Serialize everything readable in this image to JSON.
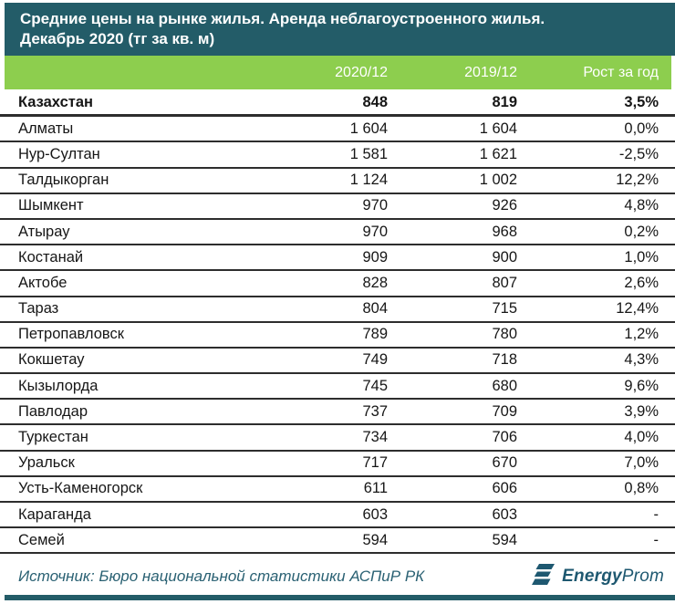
{
  "header": {
    "title_line1": "Средние цены на рынке жилья. Аренда неблагоустроенного жилья.",
    "title_line2": "Декабрь 2020 (тг за кв. м)"
  },
  "chart_data": {
    "type": "table",
    "title": "Средние цены на рынке жилья. Аренда неблагоустроенного жилья. Декабрь 2020 (тг за кв. м)",
    "columns": [
      "",
      "2020/12",
      "2019/12",
      "Рост за год"
    ],
    "rows": [
      {
        "name": "Казахстан",
        "v2020": "848",
        "v2019": "819",
        "growth": "3,5%",
        "bold": true
      },
      {
        "name": "Алматы",
        "v2020": "1 604",
        "v2019": "1 604",
        "growth": "0,0%",
        "bold": false
      },
      {
        "name": "Нур-Султан",
        "v2020": "1 581",
        "v2019": "1 621",
        "growth": "-2,5%",
        "bold": false
      },
      {
        "name": "Талдыкорган",
        "v2020": "1 124",
        "v2019": "1 002",
        "growth": "12,2%",
        "bold": false
      },
      {
        "name": "Шымкент",
        "v2020": "970",
        "v2019": "926",
        "growth": "4,8%",
        "bold": false
      },
      {
        "name": "Атырау",
        "v2020": "970",
        "v2019": "968",
        "growth": "0,2%",
        "bold": false
      },
      {
        "name": "Костанай",
        "v2020": "909",
        "v2019": "900",
        "growth": "1,0%",
        "bold": false
      },
      {
        "name": "Актобе",
        "v2020": "828",
        "v2019": "807",
        "growth": "2,6%",
        "bold": false
      },
      {
        "name": "Тараз",
        "v2020": "804",
        "v2019": "715",
        "growth": "12,4%",
        "bold": false
      },
      {
        "name": "Петропавловск",
        "v2020": "789",
        "v2019": "780",
        "growth": "1,2%",
        "bold": false
      },
      {
        "name": "Кокшетау",
        "v2020": "749",
        "v2019": "718",
        "growth": "4,3%",
        "bold": false
      },
      {
        "name": "Кызылорда",
        "v2020": "745",
        "v2019": "680",
        "growth": "9,6%",
        "bold": false
      },
      {
        "name": "Павлодар",
        "v2020": "737",
        "v2019": "709",
        "growth": "3,9%",
        "bold": false
      },
      {
        "name": "Туркестан",
        "v2020": "734",
        "v2019": "706",
        "growth": "4,0%",
        "bold": false
      },
      {
        "name": "Уральск",
        "v2020": "717",
        "v2019": "670",
        "growth": "7,0%",
        "bold": false
      },
      {
        "name": "Усть-Каменогорск",
        "v2020": "611",
        "v2019": "606",
        "growth": "0,8%",
        "bold": false
      },
      {
        "name": "Караганда",
        "v2020": "603",
        "v2019": "603",
        "growth": "-",
        "bold": false
      },
      {
        "name": "Семей",
        "v2020": "594",
        "v2019": "594",
        "growth": "-",
        "bold": false
      }
    ]
  },
  "footer": {
    "source": "Источник: Бюро национальной статистики АСПиР РК",
    "logo_bold": "Energy",
    "logo_light": "Prom"
  },
  "colors": {
    "teal": "#235C68",
    "green": "#8DCE4E",
    "line": "#2d2d2d",
    "footer_text": "#2A6173",
    "logo": "#1E5870"
  }
}
